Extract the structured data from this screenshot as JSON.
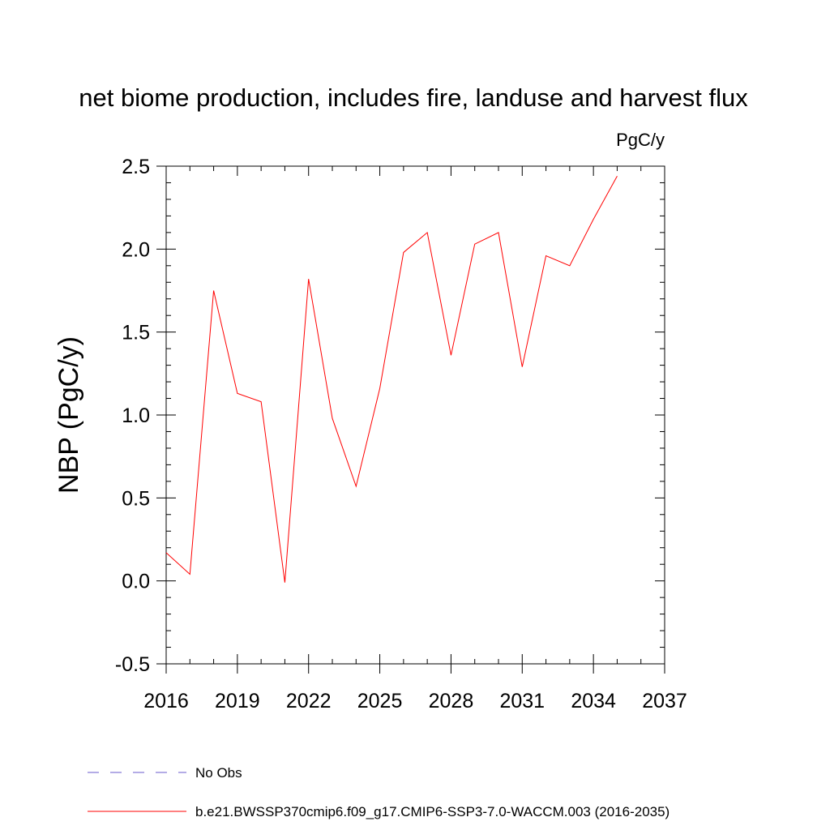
{
  "chart_data": {
    "type": "line",
    "title": "net biome production, includes fire, landuse and harvest flux",
    "units": "PgC/y",
    "xlabel": "",
    "ylabel": "NBP  (PgC/y)",
    "xlim": [
      2016,
      2037
    ],
    "ylim": [
      -0.5,
      2.5
    ],
    "x_ticks": [
      "2016",
      "2019",
      "2022",
      "2025",
      "2028",
      "2031",
      "2034",
      "2037"
    ],
    "y_ticks": [
      "-0.5",
      "0.0",
      "0.5",
      "1.0",
      "1.5",
      "2.0",
      "2.5"
    ],
    "grid": false,
    "series": [
      {
        "name": "b.e21.BWSSP370cmip6.f09_g17.CMIP6-SSP3-7.0-WACCM.003 (2016-2035)",
        "color": "#ff0000",
        "x": [
          2016,
          2017,
          2018,
          2019,
          2020,
          2021,
          2022,
          2023,
          2024,
          2025,
          2026,
          2027,
          2028,
          2029,
          2030,
          2031,
          2032,
          2033,
          2034,
          2035
        ],
        "y": [
          0.17,
          0.04,
          1.75,
          1.13,
          1.08,
          -0.01,
          1.82,
          0.98,
          0.57,
          1.16,
          1.98,
          2.1,
          1.36,
          2.03,
          2.1,
          1.29,
          1.96,
          1.9,
          2.18,
          2.44
        ]
      }
    ],
    "legend": {
      "placement": "bottom",
      "entries": [
        {
          "label": "No Obs",
          "style": "dashed",
          "color": "#6a5acd"
        },
        {
          "label": "b.e21.BWSSP370cmip6.f09_g17.CMIP6-SSP3-7.0-WACCM.003 (2016-2035)",
          "style": "solid",
          "color": "#ff0000"
        }
      ]
    }
  }
}
